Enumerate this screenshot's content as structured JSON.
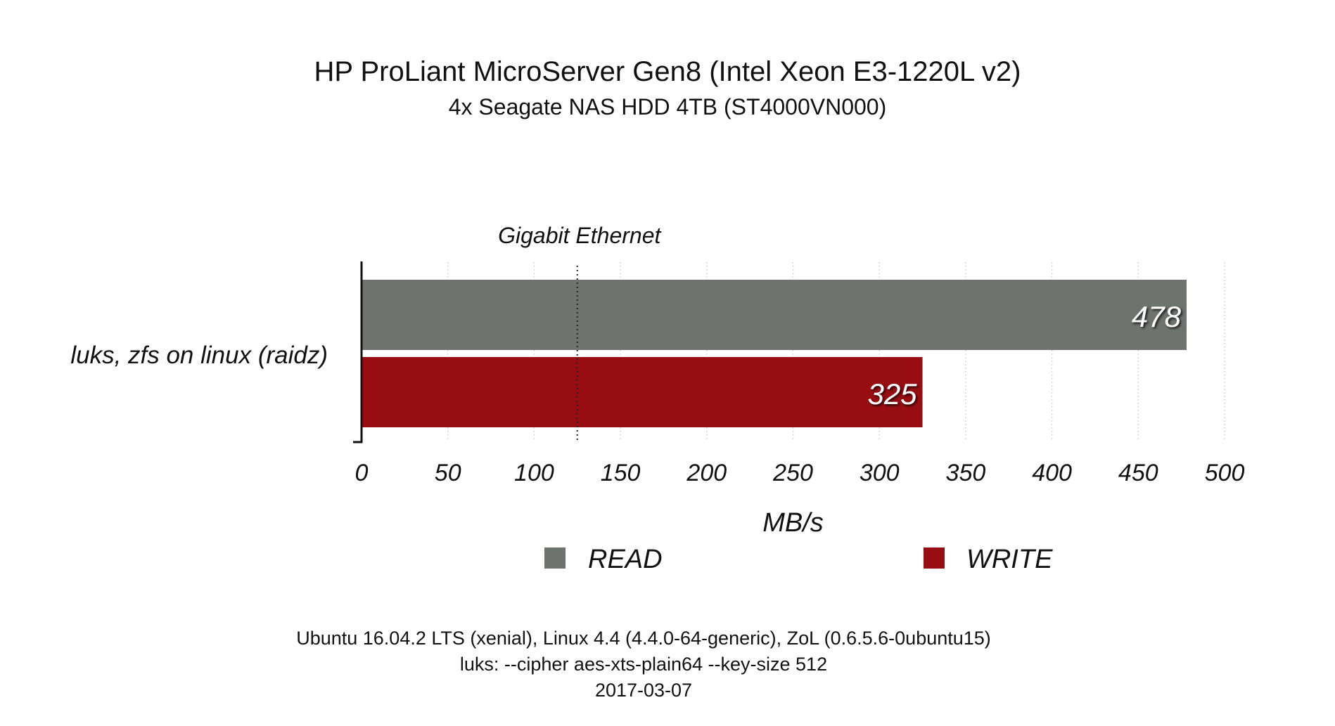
{
  "title": "HP ProLiant MicroServer Gen8 (Intel Xeon E3-1220L v2)",
  "subtitle": "4x Seagate NAS HDD 4TB (ST4000VN000)",
  "footer": [
    "Ubuntu 16.04.2 LTS (xenial), Linux 4.4 (4.4.0-64-generic), ZoL (0.6.5.6-0ubuntu15)",
    "luks: --cipher aes-xts-plain64 --key-size 512",
    "2017-03-07"
  ],
  "chart_data": {
    "type": "bar",
    "orientation": "horizontal",
    "categories": [
      "luks, zfs on linux (raidz)"
    ],
    "series": [
      {
        "name": "READ",
        "values": [
          478
        ],
        "color": "#6e7370"
      },
      {
        "name": "WRITE",
        "values": [
          325
        ],
        "color": "#970d12"
      }
    ],
    "xlabel": "MB/s",
    "xlim": [
      0,
      500
    ],
    "xticks": [
      0,
      50,
      100,
      150,
      200,
      250,
      300,
      350,
      400,
      450,
      500
    ],
    "grid": true,
    "legend": "bottom",
    "reference_line": {
      "value": 125,
      "label": "Gigabit Ethernet"
    }
  }
}
